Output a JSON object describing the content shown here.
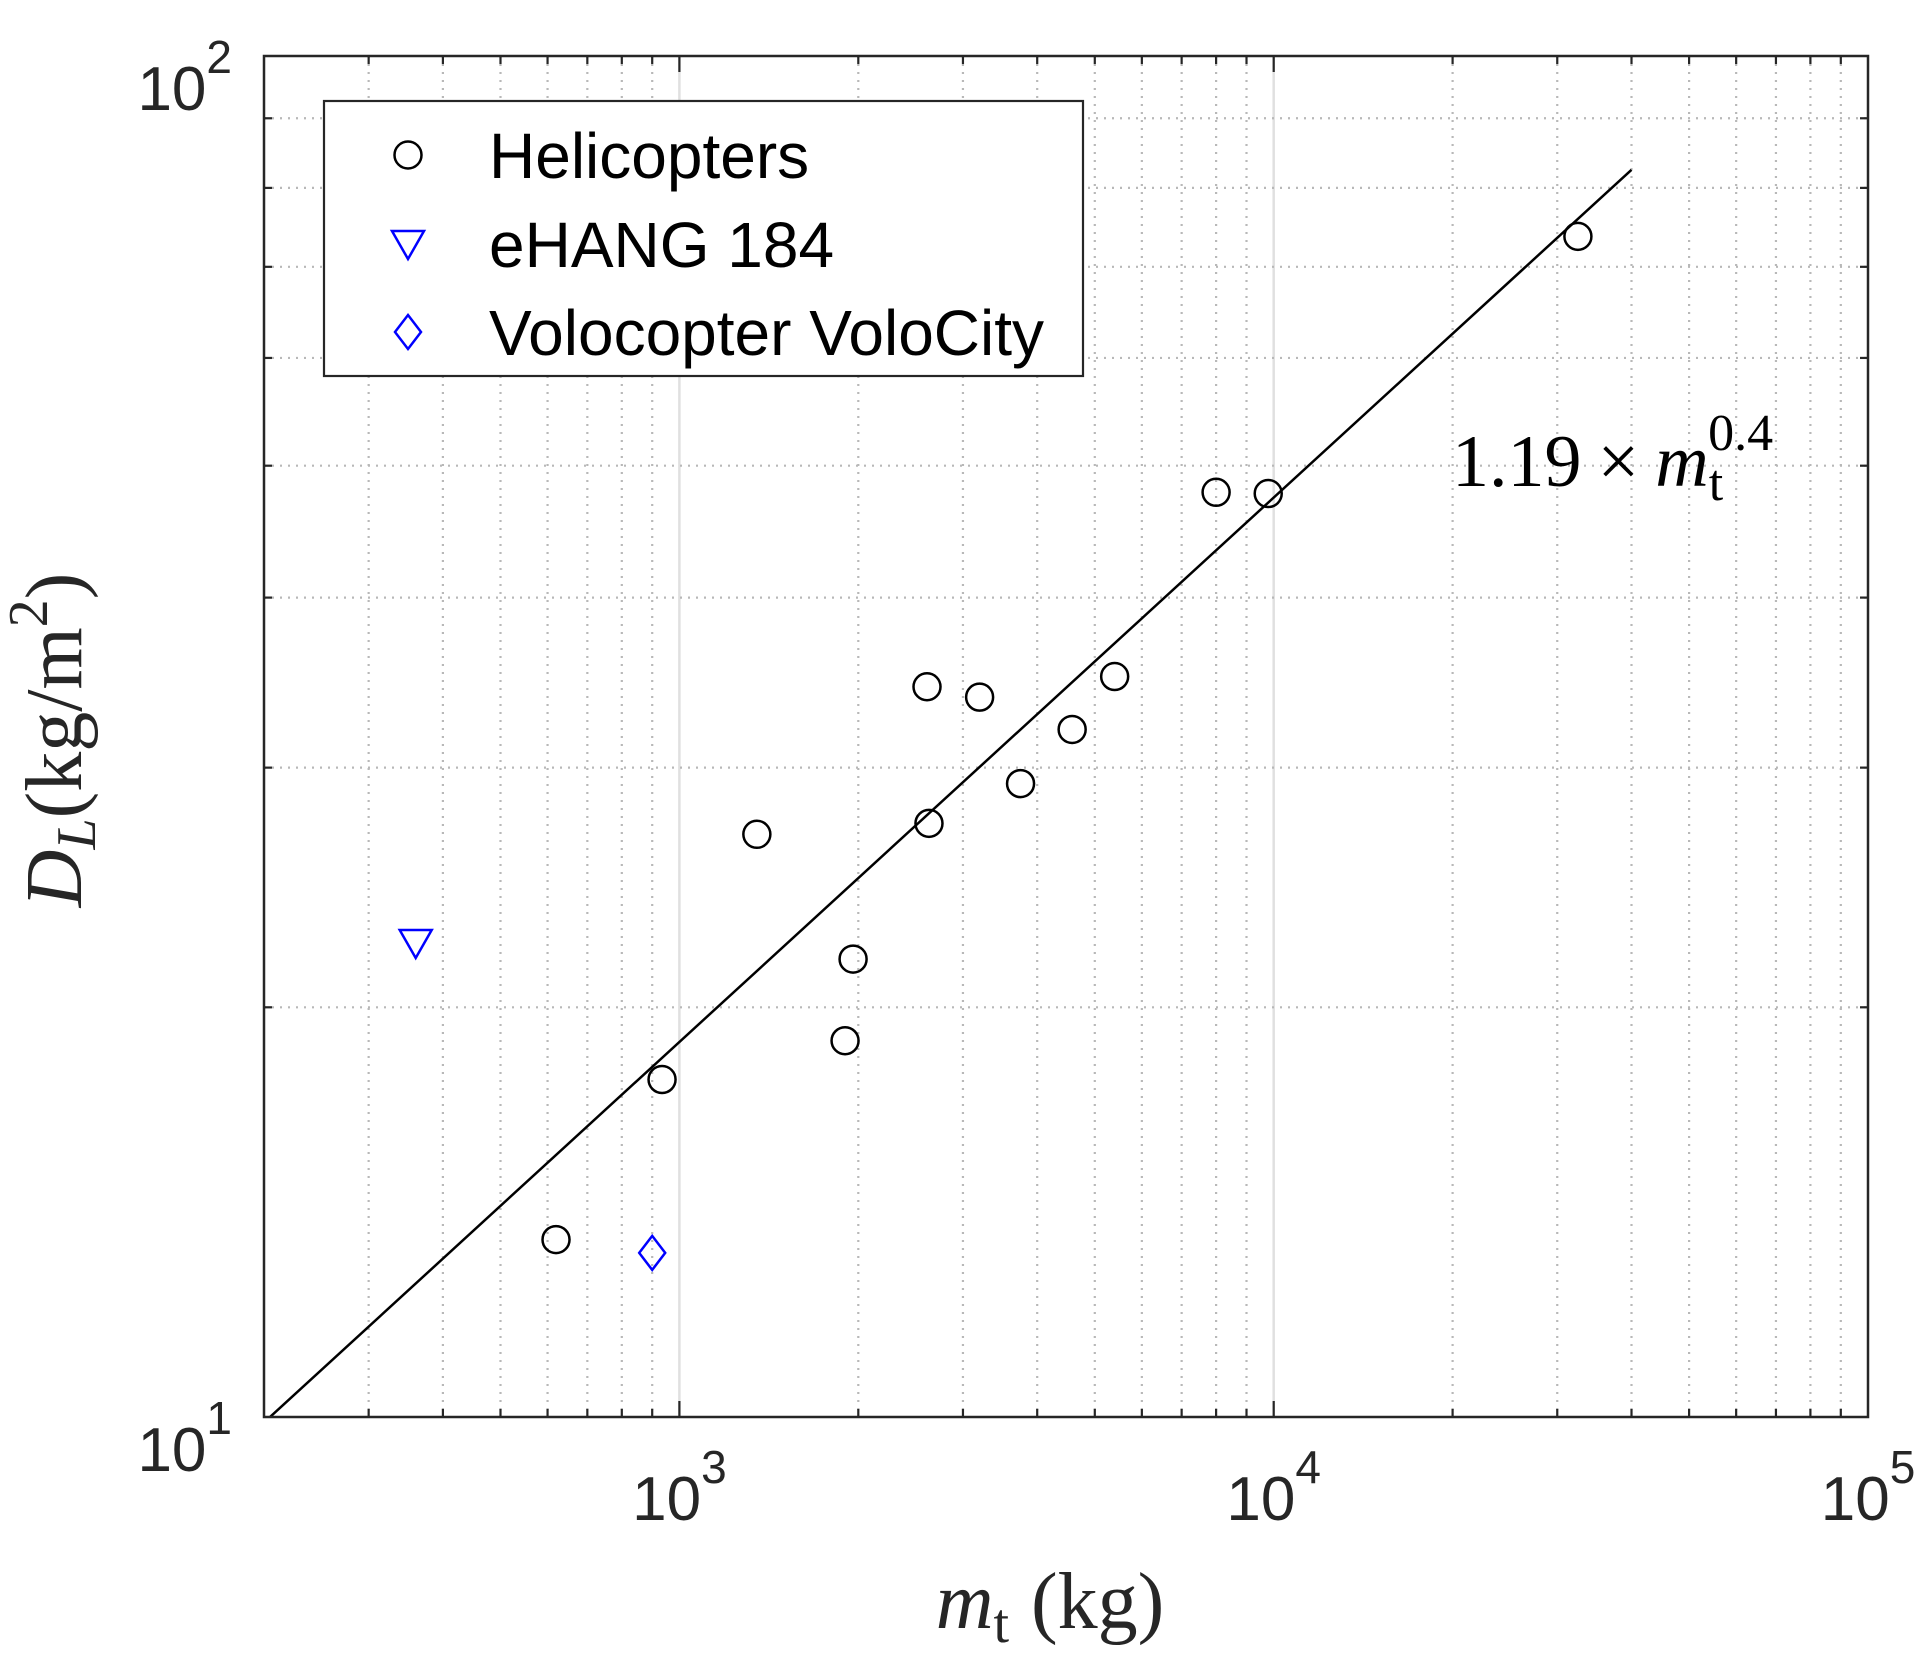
{
  "chart_data": {
    "type": "scatter",
    "title": "",
    "xscale": "log",
    "yscale": "log",
    "xlim": [
      200,
      100000
    ],
    "ylim": [
      10,
      100
    ],
    "grid": true,
    "minor_grid": true,
    "xlabel": {
      "symbol": "m",
      "subscript": "t",
      "unit": "(kg)"
    },
    "ylabel": {
      "symbol": "D",
      "subscript": "L",
      "unit_open": "(kg/m",
      "unit_superscript": "2",
      "unit_close": ")"
    },
    "xticks": [
      {
        "value": 1000,
        "base": "10",
        "exp": "3"
      },
      {
        "value": 10000,
        "base": "10",
        "exp": "4"
      },
      {
        "value": 100000,
        "base": "10",
        "exp": "5"
      }
    ],
    "yticks": [
      {
        "value": 10,
        "base": "10",
        "exp": "1"
      },
      {
        "value": 100,
        "base": "10",
        "exp": "2"
      }
    ],
    "legend": {
      "location": "top-left"
    },
    "series": [
      {
        "name": "Helicopters",
        "marker": "circle",
        "color": "#000000",
        "points": [
          {
            "x": 620,
            "y": 13.5
          },
          {
            "x": 935,
            "y": 17.7
          },
          {
            "x": 1350,
            "y": 26.8
          },
          {
            "x": 1900,
            "y": 18.9
          },
          {
            "x": 1960,
            "y": 21.7
          },
          {
            "x": 2630,
            "y": 27.3
          },
          {
            "x": 2610,
            "y": 34.4
          },
          {
            "x": 3200,
            "y": 33.8
          },
          {
            "x": 3750,
            "y": 29.2
          },
          {
            "x": 4580,
            "y": 32.0
          },
          {
            "x": 5400,
            "y": 35.0
          },
          {
            "x": 8000,
            "y": 47.8
          },
          {
            "x": 9790,
            "y": 47.7
          },
          {
            "x": 32500,
            "y": 73.7
          }
        ]
      },
      {
        "name": "eHANG 184",
        "marker": "triangle-down",
        "color": "#0000ff",
        "points": [
          {
            "x": 360,
            "y": 22.3
          }
        ]
      },
      {
        "name": "Volocopter VoloCity",
        "marker": "diamond",
        "color": "#0000ff",
        "points": [
          {
            "x": 900,
            "y": 13.2
          }
        ]
      }
    ],
    "fit_line": {
      "coefficient": 1.19,
      "exponent": 0.4,
      "x_range": [
        200,
        40000
      ],
      "color": "#000000",
      "label": {
        "coefficient": "1.19",
        "operator": "×",
        "symbol": "m",
        "subscript": "t",
        "superscript": "0.4"
      }
    }
  }
}
